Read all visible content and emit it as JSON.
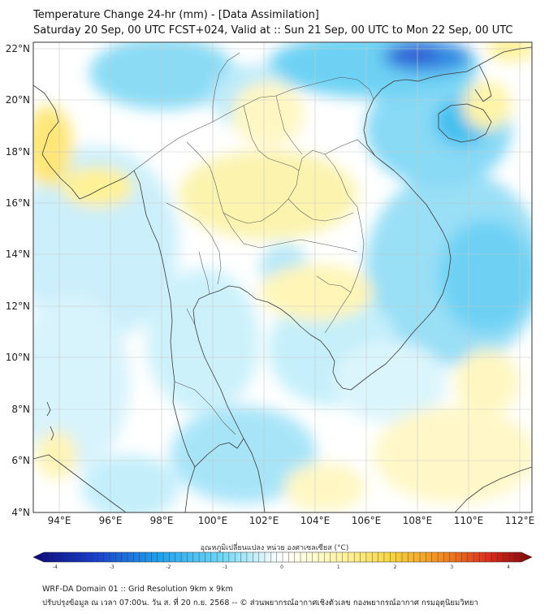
{
  "header": {
    "title": "Temperature Change 24-hr (mm) - [Data Assimilation]",
    "subtitle": "Saturday 20 Sep, 00 UTC FCST+024, Valid at :: Sun 21 Sep, 00 UTC to Mon 22 Sep, 00 UTC"
  },
  "map": {
    "lat_labels": [
      "22°N",
      "20°N",
      "18°N",
      "16°N",
      "14°N",
      "12°N",
      "10°N",
      "8°N",
      "6°N",
      "4°N"
    ],
    "lon_labels": [
      "94°E",
      "96°E",
      "98°E",
      "100°E",
      "102°E",
      "104°E",
      "106°E",
      "108°E",
      "110°E",
      "112°E"
    ],
    "region": "Mainland Southeast Asia",
    "colors": {
      "negative": "#00bfff",
      "positive": "#ffe84a",
      "neutral": "#ffffff",
      "coastline": "#3a3a3a"
    }
  },
  "colorbar": {
    "title": "อุณหภูมิเปลี่ยนแปลง หน่วย องศาเซลเซียส (°C)",
    "ticks": [
      "-4",
      "-3",
      "-2",
      "-1",
      "0",
      "1",
      "2",
      "3",
      "4"
    ],
    "range": [
      -4,
      4
    ]
  },
  "footer": {
    "line1": "WRF-DA Domain 01 :: Grid Resolution 9km x 9km",
    "line2": "ปรับปรุงข้อมูล ณ เวลา 07:00น. วัน ส. ที่ 20 ก.ย. 2568 -- © ส่วนพยากรณ์อากาศเชิงตัวเลข กองพยากรณ์อากาศ กรมอุตุนิยมวิทยา"
  }
}
